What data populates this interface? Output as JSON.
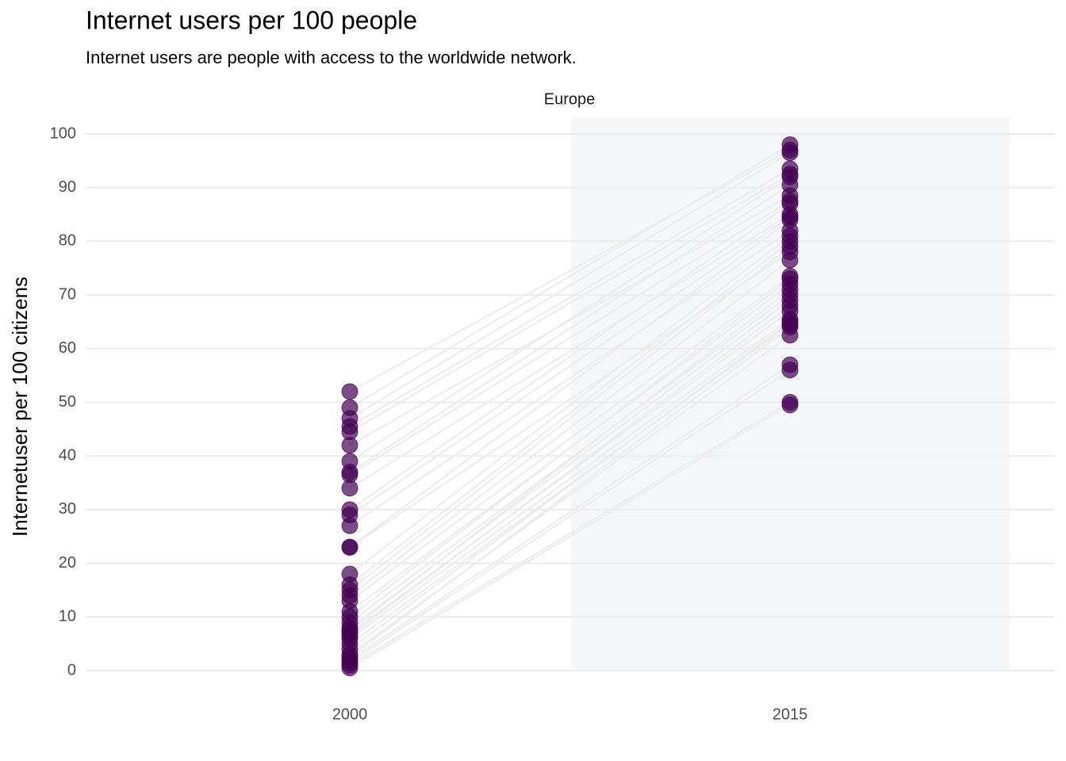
{
  "chart_data": {
    "type": "slope",
    "title": "Internet users per 100 people",
    "subtitle": "Internet users are people with access to the worldwide network.",
    "facet": "Europe",
    "y_label": "Internetuser per 100 citizens",
    "categories": [
      "2000",
      "2015"
    ],
    "color": "#440154",
    "line_color": "#ebebeb",
    "ylim": [
      -3,
      105
    ],
    "yticks": [
      0,
      10,
      20,
      30,
      40,
      50,
      60,
      70,
      80,
      90,
      100
    ],
    "grid": true,
    "series": [
      {
        "values": [
          52,
          97
        ]
      },
      {
        "values": [
          49,
          98
        ]
      },
      {
        "values": [
          47,
          96.5
        ]
      },
      {
        "values": [
          45.5,
          93.5
        ]
      },
      {
        "values": [
          44.5,
          92.5
        ]
      },
      {
        "values": [
          42,
          88.5
        ]
      },
      {
        "values": [
          39,
          92
        ]
      },
      {
        "values": [
          37,
          90.5
        ]
      },
      {
        "values": [
          36.5,
          87.5
        ]
      },
      {
        "values": [
          34,
          85
        ]
      },
      {
        "values": [
          30,
          87
        ]
      },
      {
        "values": [
          29,
          84.5
        ]
      },
      {
        "values": [
          27,
          82
        ]
      },
      {
        "values": [
          23,
          84
        ]
      },
      {
        "values": [
          23,
          78
        ]
      },
      {
        "values": [
          18,
          81
        ]
      },
      {
        "values": [
          16,
          80
        ]
      },
      {
        "values": [
          15,
          79
        ]
      },
      {
        "values": [
          14,
          76.5
        ]
      },
      {
        "values": [
          13,
          73.5
        ]
      },
      {
        "values": [
          11,
          72
        ]
      },
      {
        "values": [
          10,
          73
        ]
      },
      {
        "values": [
          9,
          70
        ]
      },
      {
        "values": [
          8,
          69
        ]
      },
      {
        "values": [
          7.5,
          71
        ]
      },
      {
        "values": [
          7,
          67
        ]
      },
      {
        "values": [
          6.5,
          68
        ]
      },
      {
        "values": [
          6,
          65.5
        ]
      },
      {
        "values": [
          5,
          64.5
        ]
      },
      {
        "values": [
          4,
          65
        ]
      },
      {
        "values": [
          3,
          62.5
        ]
      },
      {
        "values": [
          2.5,
          64
        ]
      },
      {
        "values": [
          2,
          57
        ]
      },
      {
        "values": [
          1.5,
          56
        ]
      },
      {
        "values": [
          1,
          50
        ]
      },
      {
        "values": [
          0.5,
          49.5
        ]
      }
    ]
  }
}
